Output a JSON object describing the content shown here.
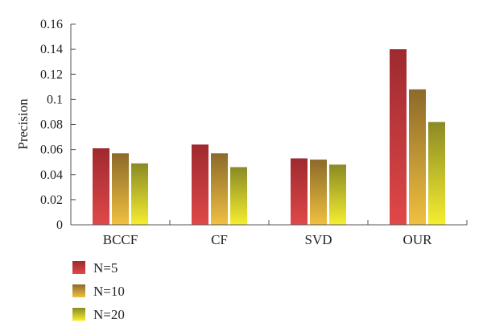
{
  "chart_data": {
    "type": "bar",
    "title": "",
    "xlabel": "",
    "ylabel": "Precision",
    "ylim": [
      0,
      0.16
    ],
    "y_ticks": [
      "0",
      "0.02",
      "0.04",
      "0.06",
      "0.08",
      "0.1",
      "0.12",
      "0.14",
      "0.16"
    ],
    "categories": [
      "BCCF",
      "CF",
      "SVD",
      "OUR"
    ],
    "series": [
      {
        "name": "N=5",
        "values": [
          0.061,
          0.064,
          0.053,
          0.14
        ],
        "colors": {
          "top": "#9e2a2f",
          "bottom": "#e04848"
        }
      },
      {
        "name": "N=10",
        "values": [
          0.057,
          0.057,
          0.052,
          0.108
        ],
        "colors": {
          "top": "#8c6a2a",
          "bottom": "#f0c040"
        }
      },
      {
        "name": "N=20",
        "values": [
          0.049,
          0.046,
          0.048,
          0.082
        ],
        "colors": {
          "top": "#8a8a24",
          "bottom": "#f6ee30"
        }
      }
    ],
    "grid": false,
    "legend_position": "bottom-left"
  }
}
